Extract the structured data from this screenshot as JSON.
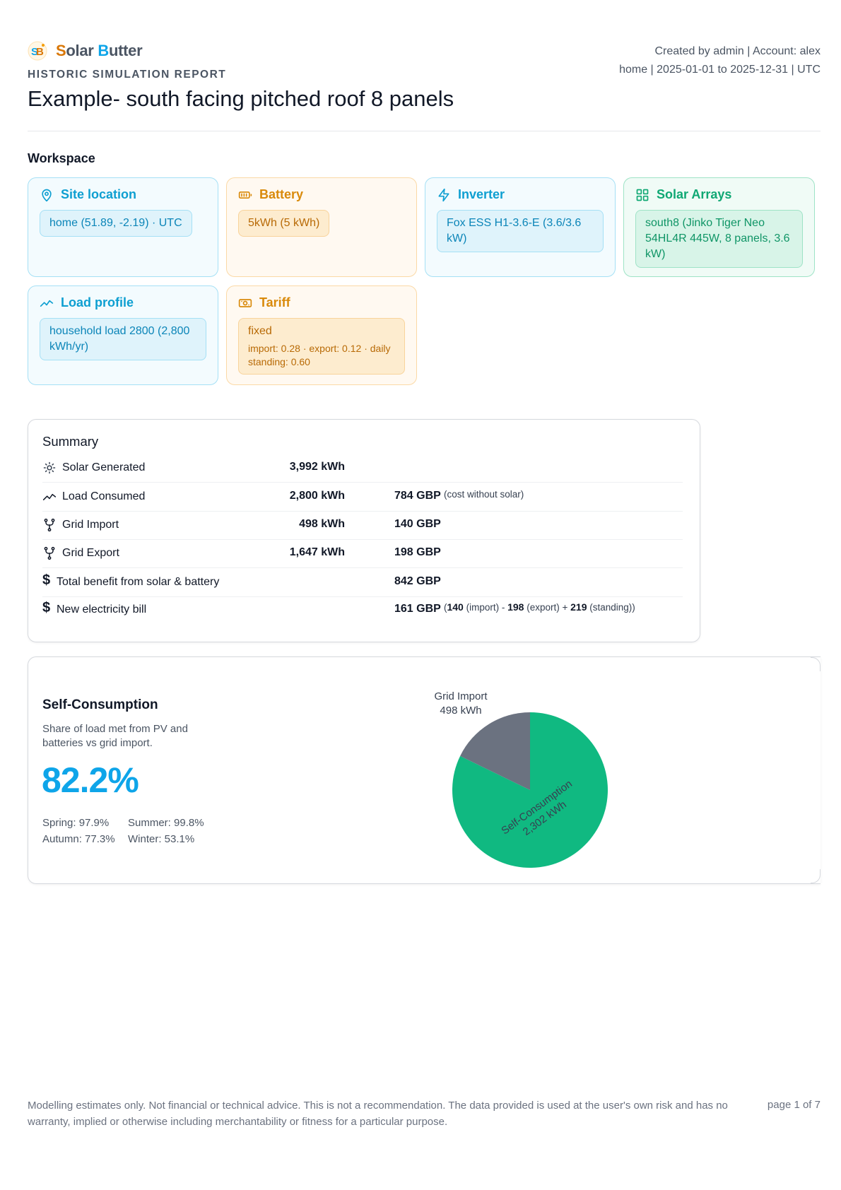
{
  "brand": {
    "name_s": "S",
    "name_olar": "olar ",
    "name_b": "B",
    "name_utter": "utter",
    "logo_icon": "solar-butter-logo-icon"
  },
  "report": {
    "kicker": "HISTORIC SIMULATION REPORT",
    "title": "Example- south facing pitched roof 8 panels"
  },
  "meta": {
    "line1": "Created by admin | Account: alex",
    "line2": "home | 2025-01-01 to 2025-12-31 | UTC"
  },
  "workspace": {
    "title": "Workspace",
    "site": {
      "title": "Site location",
      "chip": "home (51.89, -2.19) · UTC",
      "icon": "map-pin-icon"
    },
    "battery": {
      "title": "Battery",
      "chip": "5kWh (5 kWh)",
      "icon": "battery-icon"
    },
    "inverter": {
      "title": "Inverter",
      "chip": "Fox ESS H1-3.6-E (3.6/3.6 kW)",
      "icon": "lightning-icon"
    },
    "arrays": {
      "title": "Solar Arrays",
      "chip": "south8 (Jinko Tiger Neo 54HL4R 445W, 8 panels, 3.6 kW)",
      "icon": "grid-icon"
    },
    "load": {
      "title": "Load profile",
      "chip": "household load 2800 (2,800 kWh/yr)",
      "icon": "trend-line-icon"
    },
    "tariff": {
      "title": "Tariff",
      "chip_main": "fixed",
      "chip_sub": "import: 0.28 · export: 0.12 · daily standing: 0.60",
      "icon": "banknote-icon"
    }
  },
  "colors": {
    "blue": "#0e9fd1",
    "orange": "#d98a0b",
    "green": "#10a874",
    "pie_self": "#10b981",
    "pie_grid": "#6b7280"
  },
  "summary": {
    "title": "Summary",
    "rows": [
      {
        "label": "Solar Generated",
        "kwh": "3,992 kWh",
        "gbp": "",
        "icon": "sun-icon"
      },
      {
        "label": "Load Consumed",
        "kwh": "2,800 kWh",
        "gbp": "784 GBP",
        "note": "(cost without solar)",
        "icon": "trend-line-icon"
      },
      {
        "label": "Grid Import",
        "kwh": "498 kWh",
        "gbp": "140 GBP",
        "icon": "fork-icon"
      },
      {
        "label": "Grid Export",
        "kwh": "1,647 kWh",
        "gbp": "198 GBP",
        "icon": "fork-icon"
      },
      {
        "label": "Total benefit from solar & battery",
        "kwh": "",
        "gbp": "842 GBP",
        "icon": "dollar-icon"
      },
      {
        "label": "New electricity bill",
        "kwh": "",
        "gbp": "161 GBP",
        "icon": "dollar-icon",
        "bill_import": "140",
        "bill_import_lbl": "(import)",
        "bill_export": "198",
        "bill_export_lbl": "(export)",
        "bill_standing": "219",
        "bill_standing_lbl": "(standing))"
      }
    ]
  },
  "self_consumption": {
    "title": "Self-Consumption",
    "description": "Share of load met from PV and batteries vs grid import.",
    "percent": "82.2%",
    "seasons": {
      "spring": "Spring: 97.9%",
      "summer": "Summer: 99.8%",
      "autumn": "Autumn: 77.3%",
      "winter": "Winter: 53.1%"
    }
  },
  "chart_data": {
    "type": "pie",
    "slices": [
      {
        "label": "Self-Consumption",
        "value": 2302,
        "value_text": "2,302 kWh"
      },
      {
        "label": "Grid Import",
        "value": 498,
        "value_text": "498 kWh"
      }
    ]
  },
  "footer": {
    "disclaimer": "Modelling estimates only. Not financial or technical advice. This is not a recommendation. The data provided is used at the user's own risk and has no warranty, implied or otherwise including merchantability or fitness for a particular purpose.",
    "page": "page 1 of 7"
  }
}
